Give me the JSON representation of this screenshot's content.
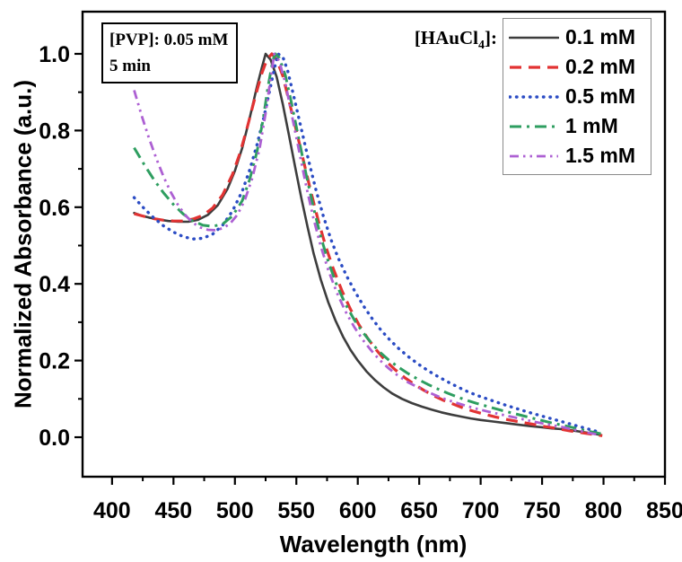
{
  "chart_data": {
    "type": "line",
    "title": "",
    "xlabel": "Wavelength (nm)",
    "ylabel": "Normalized Absorbance (a.u.)",
    "xlim": [
      376,
      850
    ],
    "ylim": [
      -0.103,
      1.11
    ],
    "x_major_ticks": [
      400,
      450,
      500,
      550,
      600,
      650,
      700,
      750,
      800,
      850
    ],
    "x_minor_ticks": [
      425,
      475,
      525,
      575,
      625,
      675,
      725,
      775,
      825
    ],
    "y_major_ticks": [
      0.0,
      0.2,
      0.4,
      0.6,
      0.8,
      1.0
    ],
    "y_minor_ticks": [
      0.1,
      0.3,
      0.5,
      0.7,
      0.9
    ],
    "grid": false,
    "legend_position": "top-right",
    "annotation": {
      "line1": "[PVP]: 0.05 mM",
      "line2": "5 min"
    },
    "legend": {
      "title_prefix": "[HAuCl",
      "title_sub": "4",
      "title_suffix": "]:"
    },
    "axis_color": "#000000",
    "series": [
      {
        "name": "0.1 mM",
        "color": "#3d3d3d",
        "dash": "none",
        "width": 2.6,
        "linecap": "round",
        "points": [
          [
            418,
            0.585
          ],
          [
            424,
            0.578
          ],
          [
            430,
            0.573
          ],
          [
            438,
            0.568
          ],
          [
            446,
            0.564
          ],
          [
            454,
            0.562
          ],
          [
            462,
            0.562
          ],
          [
            470,
            0.567
          ],
          [
            478,
            0.58
          ],
          [
            486,
            0.605
          ],
          [
            494,
            0.648
          ],
          [
            500,
            0.695
          ],
          [
            506,
            0.755
          ],
          [
            512,
            0.832
          ],
          [
            518,
            0.915
          ],
          [
            522,
            0.965
          ],
          [
            525,
            1.0
          ],
          [
            529,
            0.985
          ],
          [
            534,
            0.94
          ],
          [
            539,
            0.868
          ],
          [
            544,
            0.788
          ],
          [
            549,
            0.705
          ],
          [
            554,
            0.625
          ],
          [
            559,
            0.55
          ],
          [
            564,
            0.48
          ],
          [
            570,
            0.41
          ],
          [
            576,
            0.352
          ],
          [
            582,
            0.303
          ],
          [
            588,
            0.262
          ],
          [
            594,
            0.228
          ],
          [
            600,
            0.2
          ],
          [
            607,
            0.172
          ],
          [
            614,
            0.149
          ],
          [
            621,
            0.13
          ],
          [
            628,
            0.114
          ],
          [
            636,
            0.1
          ],
          [
            644,
            0.089
          ],
          [
            652,
            0.08
          ],
          [
            660,
            0.072
          ],
          [
            668,
            0.065
          ],
          [
            676,
            0.059
          ],
          [
            684,
            0.054
          ],
          [
            692,
            0.049
          ],
          [
            700,
            0.045
          ],
          [
            710,
            0.041
          ],
          [
            720,
            0.037
          ],
          [
            730,
            0.033
          ],
          [
            740,
            0.029
          ],
          [
            750,
            0.026
          ],
          [
            758,
            0.023
          ],
          [
            766,
            0.021
          ],
          [
            774,
            0.018
          ],
          [
            782,
            0.014
          ],
          [
            790,
            0.01
          ],
          [
            798,
            0.006
          ]
        ]
      },
      {
        "name": "0.2 mM",
        "color": "#e23333",
        "dash": "13 8",
        "width": 3.2,
        "linecap": "butt",
        "points": [
          [
            418,
            0.583
          ],
          [
            426,
            0.576
          ],
          [
            434,
            0.57
          ],
          [
            442,
            0.566
          ],
          [
            450,
            0.564
          ],
          [
            458,
            0.564
          ],
          [
            466,
            0.569
          ],
          [
            474,
            0.579
          ],
          [
            482,
            0.598
          ],
          [
            490,
            0.632
          ],
          [
            498,
            0.685
          ],
          [
            504,
            0.74
          ],
          [
            510,
            0.808
          ],
          [
            516,
            0.882
          ],
          [
            522,
            0.95
          ],
          [
            526,
            0.985
          ],
          [
            530,
            1.0
          ],
          [
            534,
            0.985
          ],
          [
            539,
            0.942
          ],
          [
            544,
            0.878
          ],
          [
            550,
            0.8
          ],
          [
            556,
            0.718
          ],
          [
            562,
            0.638
          ],
          [
            568,
            0.563
          ],
          [
            574,
            0.497
          ],
          [
            580,
            0.44
          ],
          [
            587,
            0.383
          ],
          [
            594,
            0.334
          ],
          [
            601,
            0.293
          ],
          [
            608,
            0.258
          ],
          [
            615,
            0.228
          ],
          [
            622,
            0.202
          ],
          [
            630,
            0.177
          ],
          [
            638,
            0.156
          ],
          [
            646,
            0.138
          ],
          [
            654,
            0.122
          ],
          [
            662,
            0.108
          ],
          [
            670,
            0.096
          ],
          [
            678,
            0.086
          ],
          [
            686,
            0.076
          ],
          [
            694,
            0.068
          ],
          [
            702,
            0.061
          ],
          [
            712,
            0.053
          ],
          [
            722,
            0.046
          ],
          [
            732,
            0.04
          ],
          [
            742,
            0.034
          ],
          [
            752,
            0.028
          ],
          [
            762,
            0.023
          ],
          [
            772,
            0.017
          ],
          [
            782,
            0.012
          ],
          [
            792,
            0.007
          ],
          [
            799,
            0.004
          ]
        ]
      },
      {
        "name": "0.5 mM",
        "color": "#2b4cc4",
        "dash": "0.5 7",
        "width": 3.4,
        "linecap": "round",
        "points": [
          [
            418,
            0.625
          ],
          [
            426,
            0.597
          ],
          [
            434,
            0.572
          ],
          [
            442,
            0.551
          ],
          [
            450,
            0.535
          ],
          [
            458,
            0.523
          ],
          [
            466,
            0.517
          ],
          [
            474,
            0.519
          ],
          [
            482,
            0.53
          ],
          [
            490,
            0.553
          ],
          [
            498,
            0.59
          ],
          [
            506,
            0.642
          ],
          [
            512,
            0.697
          ],
          [
            518,
            0.763
          ],
          [
            524,
            0.84
          ],
          [
            529,
            0.915
          ],
          [
            532,
            0.96
          ],
          [
            535,
            1.0
          ],
          [
            539,
            0.992
          ],
          [
            543,
            0.955
          ],
          [
            548,
            0.888
          ],
          [
            554,
            0.805
          ],
          [
            560,
            0.722
          ],
          [
            566,
            0.645
          ],
          [
            572,
            0.576
          ],
          [
            578,
            0.517
          ],
          [
            584,
            0.468
          ],
          [
            591,
            0.42
          ],
          [
            598,
            0.378
          ],
          [
            605,
            0.341
          ],
          [
            612,
            0.308
          ],
          [
            619,
            0.279
          ],
          [
            626,
            0.254
          ],
          [
            634,
            0.229
          ],
          [
            642,
            0.208
          ],
          [
            650,
            0.189
          ],
          [
            658,
            0.172
          ],
          [
            666,
            0.157
          ],
          [
            674,
            0.143
          ],
          [
            682,
            0.13
          ],
          [
            690,
            0.118
          ],
          [
            698,
            0.108
          ],
          [
            708,
            0.097
          ],
          [
            718,
            0.086
          ],
          [
            728,
            0.076
          ],
          [
            738,
            0.066
          ],
          [
            748,
            0.057
          ],
          [
            758,
            0.048
          ],
          [
            768,
            0.039
          ],
          [
            778,
            0.03
          ],
          [
            788,
            0.021
          ],
          [
            798,
            0.012
          ]
        ]
      },
      {
        "name": "1 mM",
        "color": "#2e9e60",
        "dash": "13 6 3 6",
        "width": 3.0,
        "linecap": "butt",
        "points": [
          [
            418,
            0.755
          ],
          [
            426,
            0.712
          ],
          [
            434,
            0.672
          ],
          [
            442,
            0.637
          ],
          [
            450,
            0.607
          ],
          [
            458,
            0.582
          ],
          [
            466,
            0.564
          ],
          [
            474,
            0.553
          ],
          [
            482,
            0.55
          ],
          [
            490,
            0.556
          ],
          [
            498,
            0.577
          ],
          [
            506,
            0.617
          ],
          [
            512,
            0.672
          ],
          [
            518,
            0.745
          ],
          [
            523,
            0.83
          ],
          [
            527,
            0.915
          ],
          [
            531,
            0.985
          ],
          [
            533,
            1.0
          ],
          [
            536,
            0.99
          ],
          [
            541,
            0.945
          ],
          [
            546,
            0.872
          ],
          [
            552,
            0.778
          ],
          [
            558,
            0.685
          ],
          [
            564,
            0.598
          ],
          [
            570,
            0.522
          ],
          [
            576,
            0.458
          ],
          [
            583,
            0.396
          ],
          [
            590,
            0.347
          ],
          [
            597,
            0.307
          ],
          [
            604,
            0.274
          ],
          [
            611,
            0.246
          ],
          [
            618,
            0.222
          ],
          [
            625,
            0.202
          ],
          [
            633,
            0.183
          ],
          [
            641,
            0.166
          ],
          [
            649,
            0.151
          ],
          [
            657,
            0.138
          ],
          [
            665,
            0.126
          ],
          [
            673,
            0.115
          ],
          [
            681,
            0.105
          ],
          [
            689,
            0.096
          ],
          [
            697,
            0.088
          ],
          [
            707,
            0.079
          ],
          [
            717,
            0.07
          ],
          [
            727,
            0.062
          ],
          [
            737,
            0.054
          ],
          [
            747,
            0.046
          ],
          [
            757,
            0.038
          ],
          [
            767,
            0.031
          ],
          [
            777,
            0.024
          ],
          [
            787,
            0.016
          ],
          [
            798,
            0.009
          ]
        ]
      },
      {
        "name": "1.5 mM",
        "color": "#ad60d3",
        "dash": "10 5 2.5 5 2.5 5",
        "width": 2.8,
        "linecap": "butt",
        "points": [
          [
            418,
            0.905
          ],
          [
            424,
            0.84
          ],
          [
            430,
            0.781
          ],
          [
            436,
            0.727
          ],
          [
            442,
            0.679
          ],
          [
            448,
            0.638
          ],
          [
            454,
            0.604
          ],
          [
            460,
            0.578
          ],
          [
            466,
            0.559
          ],
          [
            472,
            0.547
          ],
          [
            478,
            0.541
          ],
          [
            484,
            0.54
          ],
          [
            490,
            0.545
          ],
          [
            496,
            0.557
          ],
          [
            502,
            0.58
          ],
          [
            508,
            0.618
          ],
          [
            514,
            0.674
          ],
          [
            520,
            0.752
          ],
          [
            525,
            0.845
          ],
          [
            529,
            0.935
          ],
          [
            532,
            1.0
          ],
          [
            536,
            0.982
          ],
          [
            541,
            0.925
          ],
          [
            546,
            0.845
          ],
          [
            552,
            0.75
          ],
          [
            558,
            0.655
          ],
          [
            564,
            0.57
          ],
          [
            570,
            0.497
          ],
          [
            576,
            0.436
          ],
          [
            583,
            0.377
          ],
          [
            590,
            0.328
          ],
          [
            597,
            0.288
          ],
          [
            604,
            0.254
          ],
          [
            611,
            0.226
          ],
          [
            618,
            0.201
          ],
          [
            625,
            0.18
          ],
          [
            633,
            0.16
          ],
          [
            641,
            0.143
          ],
          [
            649,
            0.13
          ],
          [
            657,
            0.118
          ],
          [
            665,
            0.107
          ],
          [
            673,
            0.097
          ],
          [
            681,
            0.089
          ],
          [
            689,
            0.081
          ],
          [
            697,
            0.074
          ],
          [
            707,
            0.066
          ],
          [
            717,
            0.059
          ],
          [
            727,
            0.052
          ],
          [
            737,
            0.045
          ],
          [
            747,
            0.038
          ],
          [
            757,
            0.032
          ],
          [
            767,
            0.026
          ],
          [
            777,
            0.019
          ],
          [
            787,
            0.012
          ],
          [
            797,
            0.006
          ]
        ]
      }
    ]
  }
}
